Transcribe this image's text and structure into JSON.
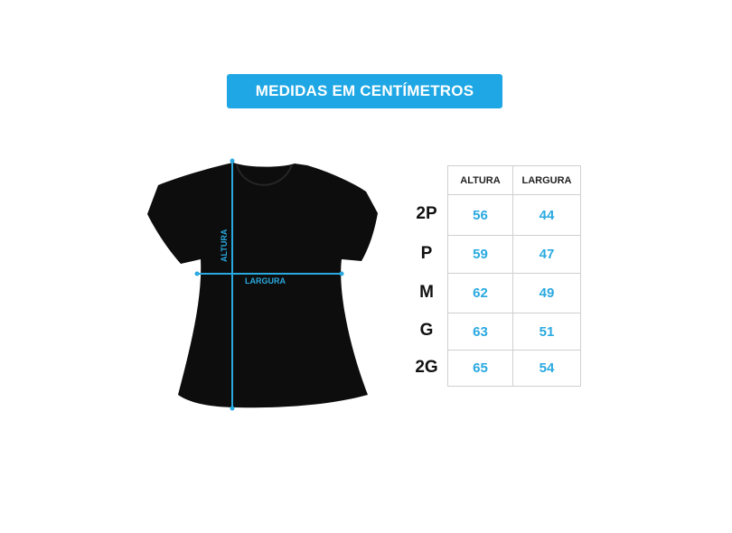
{
  "banner": {
    "title": "MEDIDAS EM CENTÍMETROS",
    "color": "#1ea7e4"
  },
  "diagram": {
    "height_label": "ALTURA",
    "width_label": "LARGURA",
    "garment": "black t-shirt",
    "line_color": "#29a9e0"
  },
  "size_table": {
    "headers": [
      "ALTURA",
      "LARGURA"
    ],
    "rows": [
      {
        "size": "2P",
        "altura": "56",
        "largura": "44"
      },
      {
        "size": "P",
        "altura": "59",
        "largura": "47"
      },
      {
        "size": "M",
        "altura": "62",
        "largura": "49"
      },
      {
        "size": "G",
        "altura": "63",
        "largura": "51"
      },
      {
        "size": "2G",
        "altura": "65",
        "largura": "54"
      }
    ]
  }
}
